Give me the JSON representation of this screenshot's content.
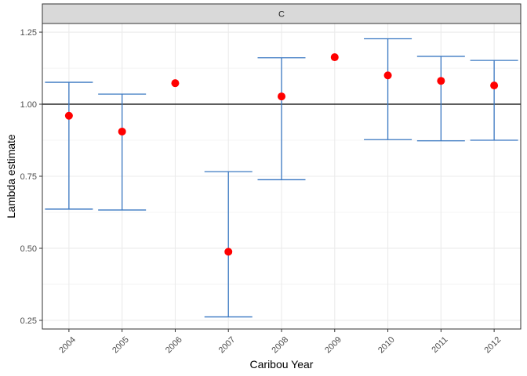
{
  "chart_data": {
    "type": "scatter",
    "facet_label": "C",
    "xlabel": "Caribou Year",
    "ylabel": "Lambda estimate",
    "categories": [
      "2004",
      "2005",
      "2006",
      "2007",
      "2008",
      "2009",
      "2010",
      "2011",
      "2012"
    ],
    "estimates": [
      0.96,
      0.905,
      1.073,
      0.488,
      1.027,
      1.163,
      1.1,
      1.081,
      1.065
    ],
    "lower": [
      0.636,
      0.633,
      null,
      0.262,
      0.738,
      null,
      0.877,
      0.873,
      0.875
    ],
    "upper": [
      1.076,
      1.035,
      null,
      0.766,
      1.161,
      null,
      1.227,
      1.166,
      1.152
    ],
    "reference_line": 1.0,
    "ylim": [
      0.22,
      1.28
    ],
    "yticks": [
      "0.25",
      "0.50",
      "0.75",
      "1.00",
      "1.25"
    ],
    "ytick_values": [
      0.25,
      0.5,
      0.75,
      1.0,
      1.25
    ],
    "grid": true,
    "colors": {
      "point": "#ff0000",
      "errorbar": "#3a78c2",
      "reference": "#000000",
      "grid": "#ebebeb",
      "strip": "#d9d9d9"
    }
  }
}
